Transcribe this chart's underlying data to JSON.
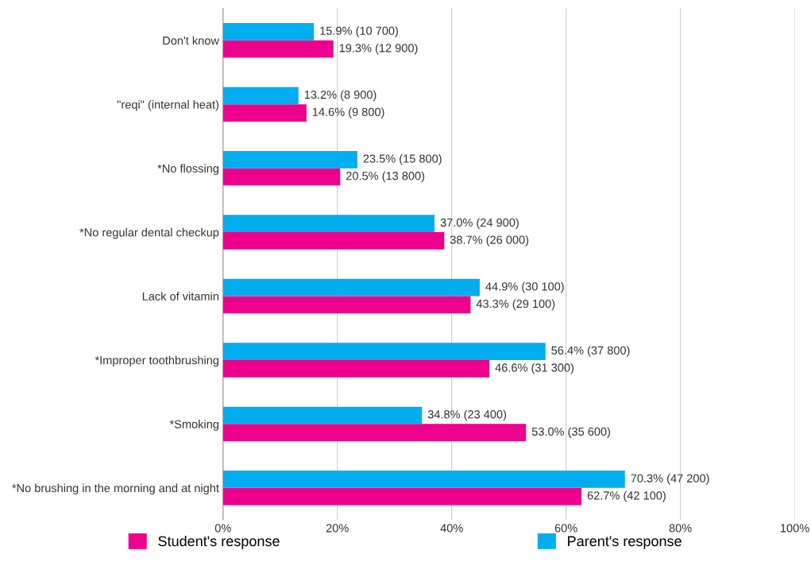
{
  "chart_data": {
    "type": "bar",
    "orientation": "horizontal",
    "categories": [
      "Don't know",
      "\"reqi\" (internal heat)",
      "*No flossing",
      "*No regular dental checkup",
      "Lack of vitamin",
      "*Improper toothbrushing",
      "*Smoking",
      "*No brushing in the morning and at night"
    ],
    "series": [
      {
        "name": "Student's response",
        "color": "#ec008c",
        "values": [
          19.3,
          14.6,
          20.5,
          38.7,
          43.3,
          46.6,
          53.0,
          62.7
        ],
        "value_labels": [
          "19.3% (12 900)",
          "14.6% (9 800)",
          "20.5% (13 800)",
          "38.7% (26 000)",
          "43.3% (29 100)",
          "46.6% (31 300)",
          "53.0% (35 600)",
          "62.7% (42 100)"
        ]
      },
      {
        "name": "Parent's response",
        "color": "#00aeef",
        "values": [
          15.9,
          13.2,
          23.5,
          37.0,
          44.9,
          56.4,
          34.8,
          70.3
        ],
        "value_labels": [
          "15.9% (10 700)",
          "13.2% (8 900)",
          "23.5% (15 800)",
          "37.0% (24 900)",
          "44.9% (30 100)",
          "56.4% (37 800)",
          "34.8% (23 400)",
          "70.3% (47 200)"
        ]
      }
    ],
    "xlim": [
      0,
      100
    ],
    "xticks": [
      {
        "value": 0,
        "label": "0%"
      },
      {
        "value": 20,
        "label": "20%"
      },
      {
        "value": 40,
        "label": "40%"
      },
      {
        "value": 60,
        "label": "60%"
      },
      {
        "value": 80,
        "label": "80%"
      },
      {
        "value": 100,
        "label": "100%"
      }
    ],
    "grid": "x",
    "legend": "bottom"
  }
}
